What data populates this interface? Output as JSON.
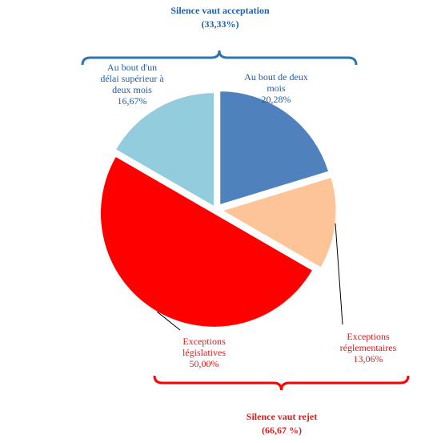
{
  "chart_data": {
    "type": "pie",
    "slices": [
      {
        "label_lines": [
          "Au bout de deux",
          "mois"
        ],
        "value_text": "20,28%",
        "value": 20.28,
        "color": "#4f81bd",
        "text_color": "#1f5fa6"
      },
      {
        "label_lines": [
          "Exceptions",
          "réglementaires"
        ],
        "value_text": "13,06%",
        "value": 13.06,
        "color": "#fcc497",
        "text_color": "#e01b1b"
      },
      {
        "label_lines": [
          "Exceptions",
          "législatives"
        ],
        "value_text": "50,00%",
        "value": 50.0,
        "color": "#ff0000",
        "text_color": "#e01b1b"
      },
      {
        "label_lines": [
          "Au bout d'un",
          "délai supérieur à",
          "deux mois"
        ],
        "value_text": "16,67%",
        "value": 16.67,
        "color": "#93cddd",
        "text_color": "#1f5fa6"
      }
    ],
    "groups": [
      {
        "title": "Silence vaut acceptation",
        "subtitle": "(33,33%)",
        "color": "#2e75b6",
        "text_color": "#1f5fa6"
      },
      {
        "title": "Silence vaut rejet",
        "subtitle": "(66,67 %)",
        "color": "#ff0000",
        "text_color": "#e01b1b"
      }
    ]
  }
}
